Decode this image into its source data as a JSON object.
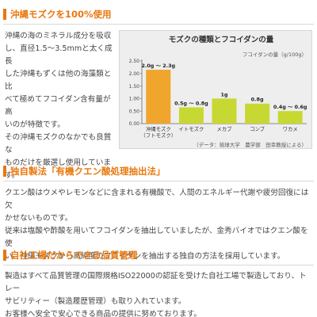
{
  "section1": {
    "title": "沖縄モズクを100%使用",
    "lines": [
      "沖縄の海のミネラル成分を吸収",
      "し、直径1.5～3.5mmと太く成長",
      "した沖縄もずくは他の海藻類と比",
      "べて極めてフコイダン含有量が高",
      "いのが特徴です。",
      "その沖縄モズクのなかでも良質な",
      "ものだけを厳選し使用していま",
      "す。"
    ]
  },
  "section2": {
    "title": "独自製法「有機クエン酸処理抽出法」",
    "lines": [
      "クエン酸はウメやレモンなどに含まれる有機酸で、人間のエネルギー代謝や疲労回復には欠",
      "かせないものです。",
      "従来は塩酸や酢酸を用いてフコイダンを抽出していましたが、金秀バイオではクエン酸を使",
      "い、沖縄モズクから高純度のフコイダンを抽出する独自の方法を採用しています。"
    ]
  },
  "section3": {
    "title": "自社工場だからできる品質管理",
    "lines": [
      "製造はすべて品質管理の国際規格ISO22000の認証を受けた自社工場で製造しており、トレー",
      "サビリティー（製造履歴管理）も取り入れています。",
      "お客様へ安全で安心できる商品の提供に努めております。"
    ]
  },
  "chart_data": {
    "type": "bar",
    "title": "モズクの種類とフコイダンの量",
    "unit_label": "フコイダンの量（g/100g）",
    "source": "（データ：琉球大学　農学部　田幸教授による）",
    "categories": [
      "沖縄モズク\n（フトモズク）",
      "イトモズク",
      "メカブ",
      "コンブ",
      "ワカメ"
    ],
    "values": [
      2.15,
      0.65,
      1.0,
      0.8,
      0.5
    ],
    "value_labels": [
      "2.0g ～ 2.3g",
      "0.5g ～ 0.8g",
      "1g",
      "0.8g",
      "0.4g ～ 0.6g"
    ],
    "ylim": [
      0,
      2.5
    ],
    "yticks": [
      "0.00",
      "0.50",
      "1.00",
      "1.50",
      "2.00",
      "2.50"
    ],
    "grid": false,
    "colors": {
      "highlight": "#f0a52d",
      "other": "#c8d832",
      "accent": "#e8780f"
    }
  }
}
